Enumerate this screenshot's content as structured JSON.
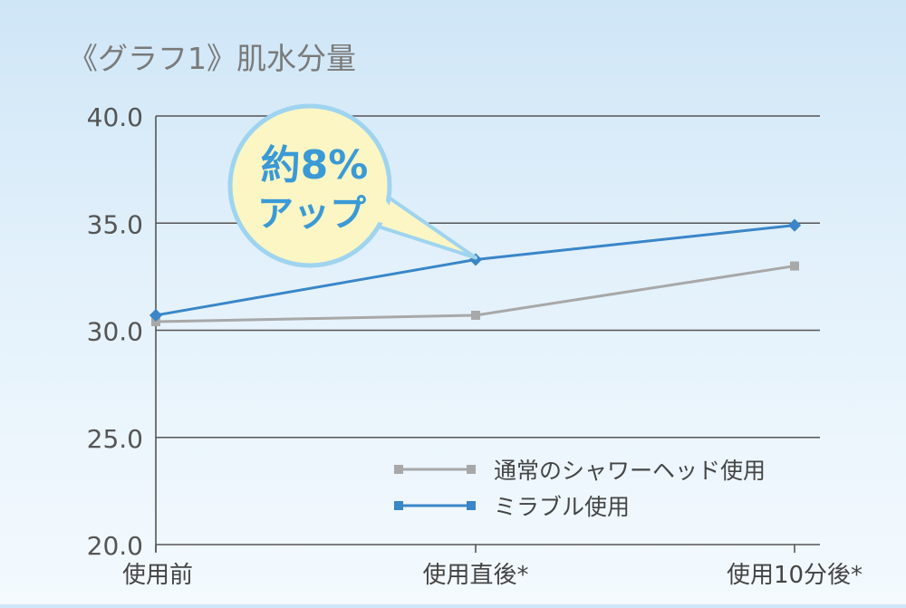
{
  "chart_data": {
    "type": "line",
    "title": "《グラフ1》肌水分量",
    "categories": [
      "使用前",
      "使用直後*",
      "使用10分後*"
    ],
    "ylim": [
      20.0,
      40.0
    ],
    "yticks": [
      "40.0",
      "35.0",
      "30.0",
      "25.0",
      "20.0"
    ],
    "grid": true,
    "legend_position": "bottom-right",
    "series": [
      {
        "name": "通常のシャワーヘッド使用",
        "color": "#a8a8a8",
        "values": [
          30.4,
          30.7,
          33.0
        ]
      },
      {
        "name": "ミラブル使用",
        "color": "#3a86c8",
        "values": [
          30.7,
          33.3,
          34.9
        ]
      }
    ],
    "annotation": {
      "line1": "約8%",
      "line2": "アップ",
      "points_to_category": "使用直後*",
      "points_to_series": "ミラブル使用",
      "fill_color": "#fbf6c4",
      "border_color": "#9fd4ef",
      "text_color": "#3a9ad6"
    }
  }
}
